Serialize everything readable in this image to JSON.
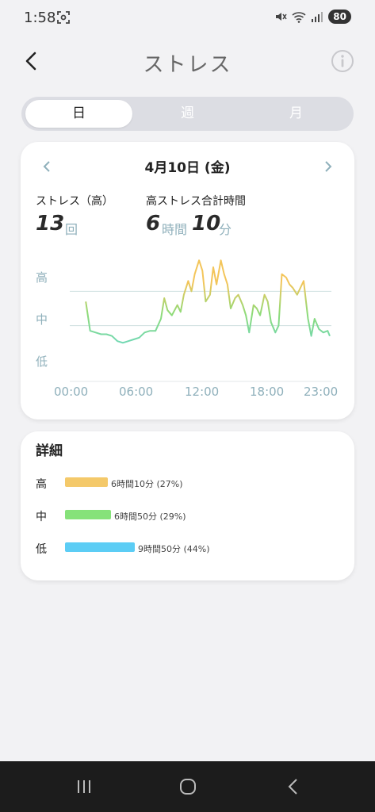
{
  "status_bar": {
    "time": "1:58",
    "battery": "80"
  },
  "header": {
    "title": "ストレス"
  },
  "segmented": {
    "day": "日",
    "week": "週",
    "month": "月"
  },
  "chart_card": {
    "date": "4月10日 (金)",
    "stress_high_label": "ストレス（高）",
    "stress_high_count": "13",
    "stress_high_unit": "回",
    "total_time_label": "高ストレス合計時間",
    "total_hours": "6",
    "hours_unit": "時間",
    "total_minutes": "10",
    "minutes_unit": "分"
  },
  "chart_data": {
    "type": "line",
    "y_levels": [
      "高",
      "中",
      "低"
    ],
    "x_ticks": [
      "00:00",
      "06:00",
      "12:00",
      "18:00",
      "23:00"
    ],
    "line_colors": {
      "high": "#f3c55a",
      "mid": "#8edb78",
      "low": "#5fd6d6"
    },
    "x": [
      0.6,
      1,
      1.5,
      2,
      2.5,
      3,
      3.5,
      4,
      4.5,
      5,
      5.5,
      6,
      6.5,
      7,
      7.5,
      7.8,
      8.1,
      8.5,
      9,
      9.3,
      9.6,
      10,
      10.3,
      10.6,
      11,
      11.3,
      11.6,
      12,
      12.3,
      12.6,
      13,
      13.3,
      13.6,
      13.9,
      14.3,
      14.6,
      15,
      15.3,
      15.6,
      16,
      16.3,
      16.6,
      17,
      17.3,
      17.6,
      18,
      18.3,
      18.6,
      19,
      19.3,
      19.6,
      20,
      20.3,
      20.6,
      21,
      21.3,
      21.6,
      22,
      22.4,
      22.8,
      23
    ],
    "values": [
      1.7,
      0.85,
      0.8,
      0.75,
      0.75,
      0.7,
      0.55,
      0.5,
      0.55,
      0.6,
      0.65,
      0.8,
      0.85,
      0.85,
      1.2,
      1.8,
      1.45,
      1.3,
      1.6,
      1.4,
      1.9,
      2.3,
      2.0,
      2.5,
      2.9,
      2.6,
      1.7,
      1.9,
      2.7,
      2.2,
      2.9,
      2.5,
      2.2,
      1.5,
      1.8,
      1.9,
      1.6,
      1.3,
      0.8,
      1.6,
      1.5,
      1.3,
      1.9,
      1.7,
      1.1,
      0.8,
      1.0,
      2.5,
      2.4,
      2.2,
      2.1,
      1.9,
      2.1,
      2.3,
      1.2,
      0.7,
      1.2,
      0.9,
      0.8,
      0.85,
      0.7
    ],
    "grid": "mid-band lines"
  },
  "details": {
    "title": "詳細",
    "rows": [
      {
        "label": "高",
        "value": "6時間10分 (27%)",
        "percent": 27,
        "color": "#f4c96a"
      },
      {
        "label": "中",
        "value": "6時間50分 (29%)",
        "percent": 29,
        "color": "#86e27a"
      },
      {
        "label": "低",
        "value": "9時間50分 (44%)",
        "percent": 44,
        "color": "#5ccdf5"
      }
    ]
  }
}
